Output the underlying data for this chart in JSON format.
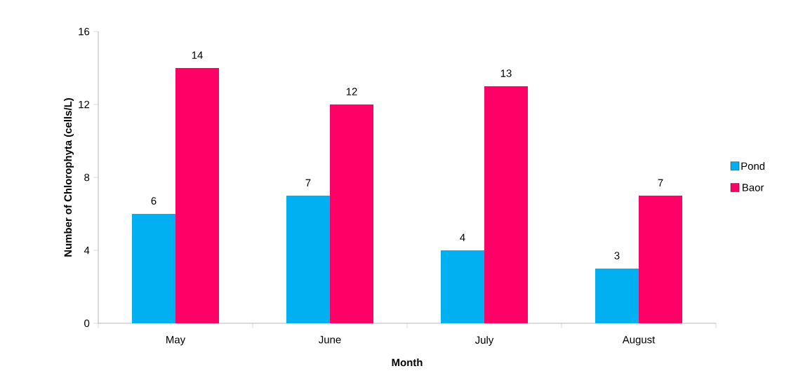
{
  "chart_data": {
    "type": "bar",
    "xlabel": "Month",
    "ylabel": "Number of Chlorophyta (cells/L)",
    "categories": [
      "May",
      "June",
      "July",
      "August"
    ],
    "series": [
      {
        "name": "Pond",
        "color": "#00b0f0",
        "values": [
          6,
          7,
          4,
          3
        ]
      },
      {
        "name": "Baor",
        "color": "#ff0066",
        "values": [
          14,
          12,
          13,
          7
        ]
      }
    ],
    "ylim": [
      0,
      16
    ],
    "yticks": [
      0,
      4,
      8,
      12,
      16
    ],
    "data_labels": true,
    "legend": "right",
    "grid": false
  }
}
